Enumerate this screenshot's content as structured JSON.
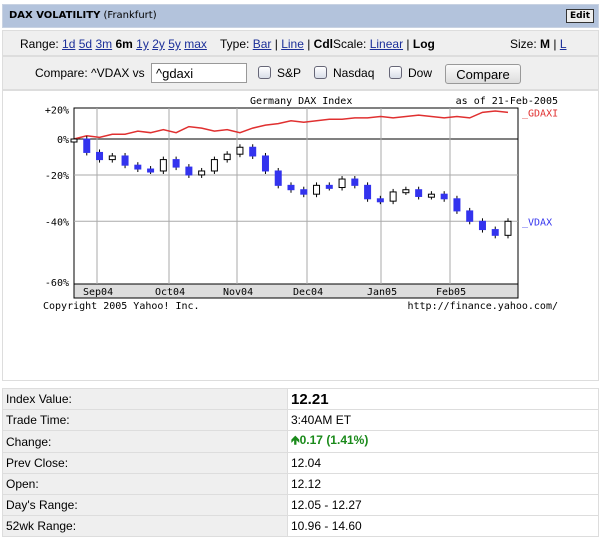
{
  "header": {
    "title": "DAX VOLATILITY",
    "exchange": "(Frankfurt)",
    "edit_label": "Edit"
  },
  "controls": {
    "range_label": "Range:",
    "ranges": [
      "1d",
      "5d",
      "3m",
      "6m",
      "1y",
      "2y",
      "5y",
      "max"
    ],
    "range_selected": "6m",
    "type_label": "Type:",
    "types": [
      "Bar",
      "Line",
      "Cdl"
    ],
    "type_selected": "Cdl",
    "scale_label": "Scale:",
    "scales": [
      "Linear",
      "Log"
    ],
    "scale_selected": "Log",
    "size_label": "Size:",
    "sizes": [
      "M",
      "L"
    ],
    "size_selected": "M",
    "compare_label": "Compare: ^VDAX vs",
    "compare_value": "^gdaxi",
    "checkboxes": [
      {
        "label": "S&P",
        "checked": false
      },
      {
        "label": "Nasdaq",
        "checked": false
      },
      {
        "label": "Dow",
        "checked": false
      }
    ],
    "compare_button": "Compare"
  },
  "chart_data": {
    "type": "line",
    "title": "Germany DAX Index",
    "date_label": "as of 21-Feb-2005",
    "scale": "log",
    "ylim": [
      -60,
      20
    ],
    "y_ticks": [
      "+20%",
      "0%",
      "-20%",
      "-40%",
      "-60%"
    ],
    "x_ticks": [
      "Sep04",
      "Oct04",
      "Nov04",
      "Dec04",
      "Jan05",
      "Feb05"
    ],
    "grid": true,
    "copyright": "Copyright 2005 Yahoo! Inc.",
    "url": "http://finance.yahoo.com/",
    "series": [
      {
        "name": "_GDAXI",
        "style": "line",
        "color": "#e03030",
        "values": [
          0,
          2,
          1,
          3,
          3,
          5,
          4,
          6,
          4,
          8,
          7,
          5,
          6,
          4,
          7,
          9,
          10,
          12,
          11,
          12,
          13,
          13,
          14,
          14,
          15,
          14,
          15,
          16,
          15,
          14,
          15,
          14,
          18,
          19,
          18
        ]
      },
      {
        "name": "_VDAX",
        "style": "candlestick",
        "color": "#3333ee",
        "values": [
          0,
          -8,
          -12,
          -10,
          -15,
          -17,
          -18,
          -12,
          -16,
          -20,
          -18,
          -12,
          -9,
          -5,
          -10,
          -18,
          -25,
          -27,
          -29,
          -25,
          -26,
          -22,
          -25,
          -31,
          -32,
          -28,
          -27,
          -30,
          -29,
          -31,
          -36,
          -40,
          -43,
          -45,
          -40
        ]
      }
    ]
  },
  "quote": [
    {
      "label": "Index Value:",
      "value": "12.21"
    },
    {
      "label": "Trade Time:",
      "value": "3:40AM ET"
    },
    {
      "label": "Change:",
      "value": "0.17 (1.41%)",
      "direction": "up",
      "color": "#1a8a1a"
    },
    {
      "label": "Prev Close:",
      "value": "12.04"
    },
    {
      "label": "Open:",
      "value": "12.12"
    },
    {
      "label": "Day's Range:",
      "value": "12.05 - 12.27"
    },
    {
      "label": "52wk Range:",
      "value": "10.96 - 14.60"
    }
  ]
}
